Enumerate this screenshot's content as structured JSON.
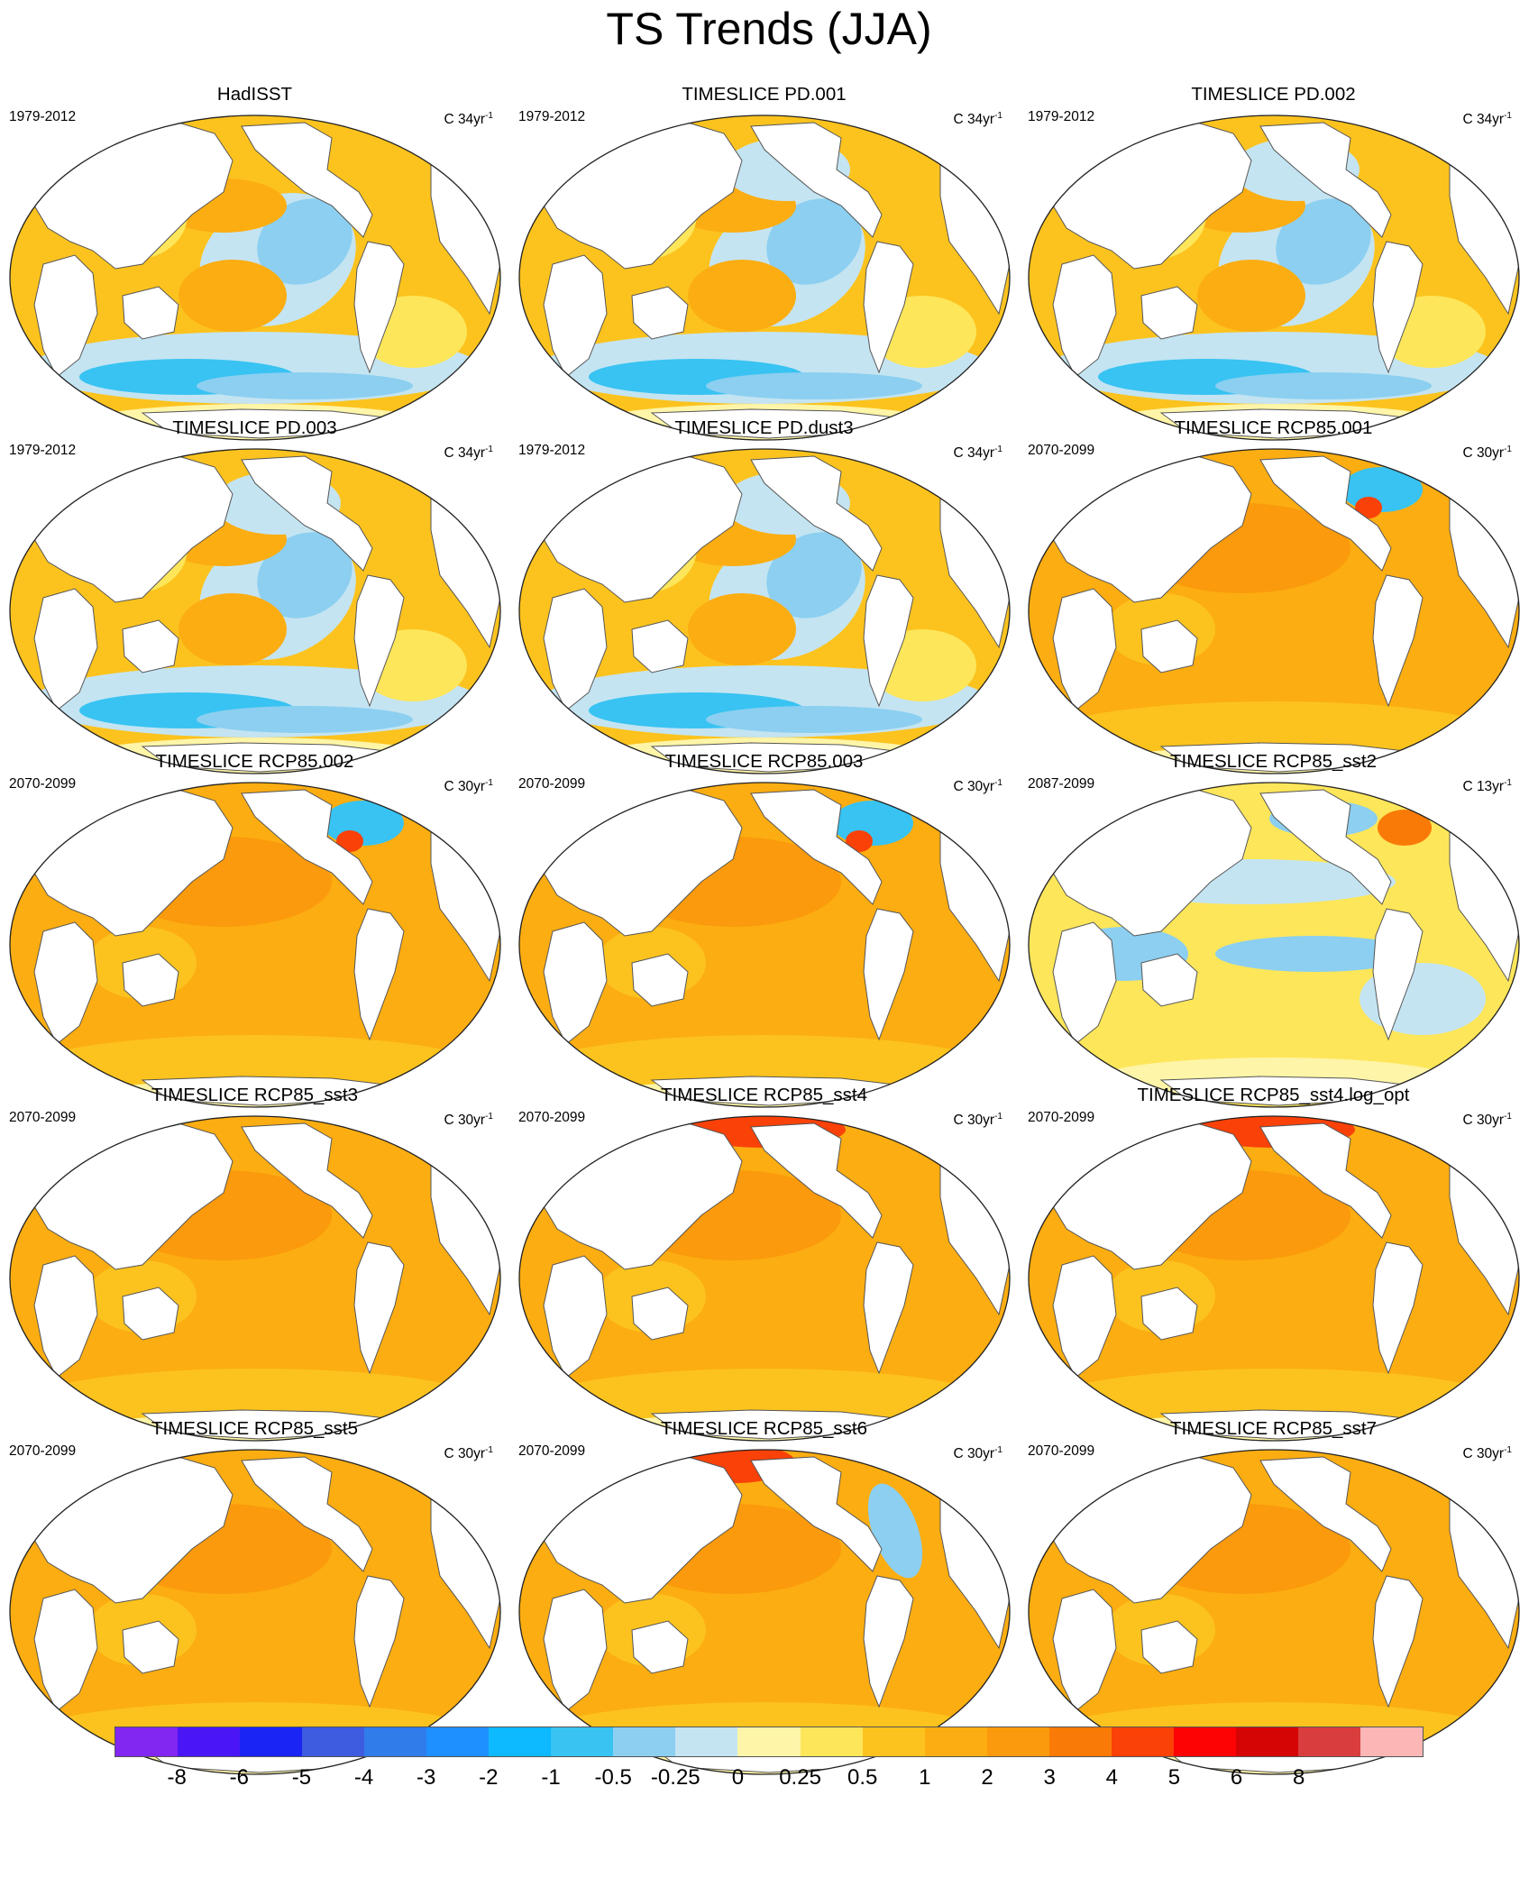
{
  "title": "TS Trends (JJA)",
  "colorbar": {
    "colors": [
      "#8226f2",
      "#4b16f6",
      "#1a24f4",
      "#3e5ce0",
      "#2f7cea",
      "#1e90ff",
      "#0db9ff",
      "#38c3f2",
      "#8ccff0",
      "#c4e4f2",
      "#fff5a8",
      "#fde65a",
      "#fcc31e",
      "#fcad11",
      "#fb9a0c",
      "#fa7a07",
      "#fa4108",
      "#fd0303",
      "#d60505",
      "#da3d3d",
      "#fdb6b6"
    ],
    "labels": [
      "-8",
      "-6",
      "-5",
      "-4",
      "-3",
      "-2",
      "-1",
      "-0.5",
      "-0.25",
      "0",
      "0.25",
      "0.5",
      "1",
      "2",
      "3",
      "4",
      "5",
      "6",
      "8"
    ]
  },
  "panels": [
    {
      "title": "HadISST",
      "years": "1979-2012",
      "units": "C 34yr",
      "units_exp": "-1",
      "pattern": "obs"
    },
    {
      "title": "TIMESLICE PD.001",
      "years": "1979-2012",
      "units": "C 34yr",
      "units_exp": "-1",
      "pattern": "pd"
    },
    {
      "title": "TIMESLICE PD.002",
      "years": "1979-2012",
      "units": "C 34yr",
      "units_exp": "-1",
      "pattern": "pd"
    },
    {
      "title": "TIMESLICE PD.003",
      "years": "1979-2012",
      "units": "C 34yr",
      "units_exp": "-1",
      "pattern": "pd"
    },
    {
      "title": "TIMESLICE PD.dust3",
      "years": "1979-2012",
      "units": "C 34yr",
      "units_exp": "-1",
      "pattern": "pd"
    },
    {
      "title": "TIMESLICE RCP85.001",
      "years": "2070-2099",
      "units": "C 30yr",
      "units_exp": "-1",
      "pattern": "rcp_cold_atl"
    },
    {
      "title": "TIMESLICE RCP85.002",
      "years": "2070-2099",
      "units": "C 30yr",
      "units_exp": "-1",
      "pattern": "rcp_cold_atl"
    },
    {
      "title": "TIMESLICE RCP85.003",
      "years": "2070-2099",
      "units": "C 30yr",
      "units_exp": "-1",
      "pattern": "rcp_cold_atl"
    },
    {
      "title": "TIMESLICE RCP85_sst2",
      "years": "2087-2099",
      "units": "C 13yr",
      "units_exp": "-1",
      "pattern": "short"
    },
    {
      "title": "TIMESLICE RCP85_sst3",
      "years": "2070-2099",
      "units": "C 30yr",
      "units_exp": "-1",
      "pattern": "rcp"
    },
    {
      "title": "TIMESLICE RCP85_sst4",
      "years": "2070-2099",
      "units": "C 30yr",
      "units_exp": "-1",
      "pattern": "rcp_hot_arctic"
    },
    {
      "title": "TIMESLICE RCP85_sst4.log_opt",
      "years": "2070-2099",
      "units": "C 30yr",
      "units_exp": "-1",
      "pattern": "rcp_hot_arctic"
    },
    {
      "title": "TIMESLICE RCP85_sst5",
      "years": "2070-2099",
      "units": "C 30yr",
      "units_exp": "-1",
      "pattern": "rcp"
    },
    {
      "title": "TIMESLICE RCP85_sst6",
      "years": "2070-2099",
      "units": "C 30yr",
      "units_exp": "-1",
      "pattern": "rcp_sst6"
    },
    {
      "title": "TIMESLICE RCP85_sst7",
      "years": "2070-2099",
      "units": "C 30yr",
      "units_exp": "-1",
      "pattern": "rcp"
    }
  ]
}
